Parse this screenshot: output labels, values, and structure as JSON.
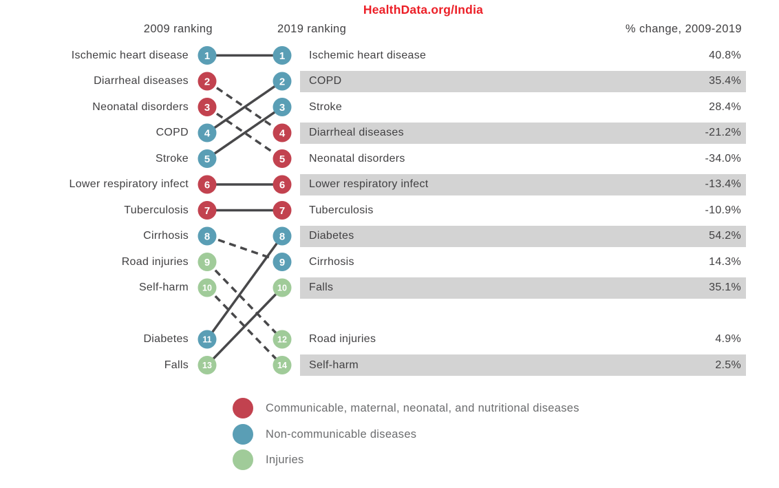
{
  "title": "HealthData.org/India",
  "colors": {
    "title_red": "#EC1F27",
    "band_gray": "#D3D3D3",
    "line_dark": "#48484A",
    "label_text": "#414042",
    "header_text": "#414042",
    "legend_text": "#6B6C6E",
    "circle_number_text": "#FFFFFF"
  },
  "chart_data": {
    "type": "slopegraph",
    "title": "HealthData.org/India",
    "column_headers": [
      "2009 ranking",
      "2019 ranking",
      "% change, 2009-2019"
    ],
    "categories": {
      "communicable": {
        "label": "Communicable, maternal, neonatal, and nutritional diseases",
        "color": "#C2424F"
      },
      "non_communicable": {
        "label": "Non-communicable diseases",
        "color": "#5A9EB5"
      },
      "injuries": {
        "label": "Injuries",
        "color": "#A0CB99"
      }
    },
    "legend_order": [
      "communicable",
      "non_communicable",
      "injuries"
    ],
    "causes": [
      {
        "name": "Ischemic heart disease",
        "category": "non_communicable",
        "rank_2009": 1,
        "rank_2019": 1,
        "pct_change": 40.8,
        "pct_change_label": "40.8%",
        "line": "solid"
      },
      {
        "name": "Diarrheal diseases",
        "category": "communicable",
        "rank_2009": 2,
        "rank_2019": 4,
        "pct_change": -21.2,
        "pct_change_label": "-21.2%",
        "line": "dashed"
      },
      {
        "name": "Neonatal disorders",
        "category": "communicable",
        "rank_2009": 3,
        "rank_2019": 5,
        "pct_change": -34.0,
        "pct_change_label": "-34.0%",
        "line": "dashed"
      },
      {
        "name": "COPD",
        "category": "non_communicable",
        "rank_2009": 4,
        "rank_2019": 2,
        "pct_change": 35.4,
        "pct_change_label": "35.4%",
        "line": "solid"
      },
      {
        "name": "Stroke",
        "category": "non_communicable",
        "rank_2009": 5,
        "rank_2019": 3,
        "pct_change": 28.4,
        "pct_change_label": "28.4%",
        "line": "solid"
      },
      {
        "name": "Lower respiratory infect",
        "category": "communicable",
        "rank_2009": 6,
        "rank_2019": 6,
        "pct_change": -13.4,
        "pct_change_label": "-13.4%",
        "line": "solid"
      },
      {
        "name": "Tuberculosis",
        "category": "communicable",
        "rank_2009": 7,
        "rank_2019": 7,
        "pct_change": -10.9,
        "pct_change_label": "-10.9%",
        "line": "solid"
      },
      {
        "name": "Cirrhosis",
        "category": "non_communicable",
        "rank_2009": 8,
        "rank_2019": 9,
        "pct_change": 14.3,
        "pct_change_label": "14.3%",
        "line": "dashed"
      },
      {
        "name": "Road injuries",
        "category": "injuries",
        "rank_2009": 9,
        "rank_2019": 12,
        "pct_change": 4.9,
        "pct_change_label": "4.9%",
        "line": "dashed"
      },
      {
        "name": "Self-harm",
        "category": "injuries",
        "rank_2009": 10,
        "rank_2019": 14,
        "pct_change": 2.5,
        "pct_change_label": "2.5%",
        "line": "dashed"
      },
      {
        "name": "Diabetes",
        "category": "non_communicable",
        "rank_2009": 11,
        "rank_2019": 8,
        "pct_change": 54.2,
        "pct_change_label": "54.2%",
        "line": "solid"
      },
      {
        "name": "Falls",
        "category": "injuries",
        "rank_2009": 13,
        "rank_2019": 10,
        "pct_change": 35.1,
        "pct_change_label": "35.1%",
        "line": "solid"
      }
    ],
    "shaded_2019_ranks": [
      2,
      4,
      6,
      8,
      10,
      14
    ]
  }
}
